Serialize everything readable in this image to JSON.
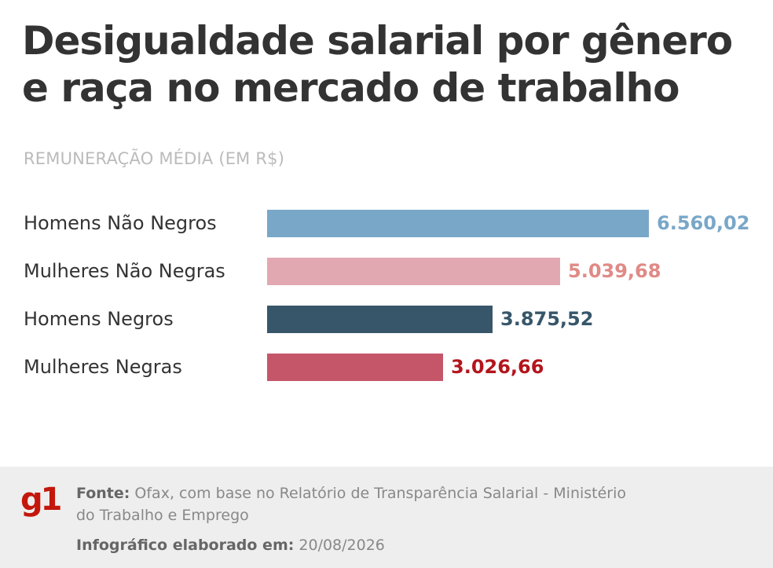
{
  "title": {
    "line1": "Desigualdade salarial por gênero",
    "line2": "e raça no mercado de trabalho"
  },
  "subtitle": "REMUNERAÇÃO MÉDIA (EM R$)",
  "chart_data": {
    "type": "bar",
    "orientation": "horizontal",
    "title": "Desigualdade salarial por gênero e raça no mercado de trabalho",
    "subtitle": "REMUNERAÇÃO MÉDIA (EM R$)",
    "categories": [
      "Homens Não Negros",
      "Mulheres Não Negras",
      "Homens Negros",
      "Mulheres Negras"
    ],
    "values": [
      6560.02,
      5039.68,
      3875.52,
      3026.66
    ],
    "value_labels": [
      "6.560,02",
      "5.039,68",
      "3.875,52",
      "3.026,66"
    ],
    "bar_colors": [
      "#79a7c8",
      "#e2a8b2",
      "#37566a",
      "#c5566a"
    ],
    "label_colors": [
      "#79a7c8",
      "#e08a86",
      "#37566a",
      "#b3151c"
    ],
    "xlim": [
      0,
      6560.02
    ],
    "grid": false,
    "legend": "none"
  },
  "footer": {
    "logo": "g1",
    "source_key": "Fonte:",
    "source_text": "Ofax, com base no Relatório de Transparência Salarial - Ministério do Trabalho e Emprego",
    "made_key": "Infográfico elaborado em:",
    "made_date": "20/08/2026"
  }
}
